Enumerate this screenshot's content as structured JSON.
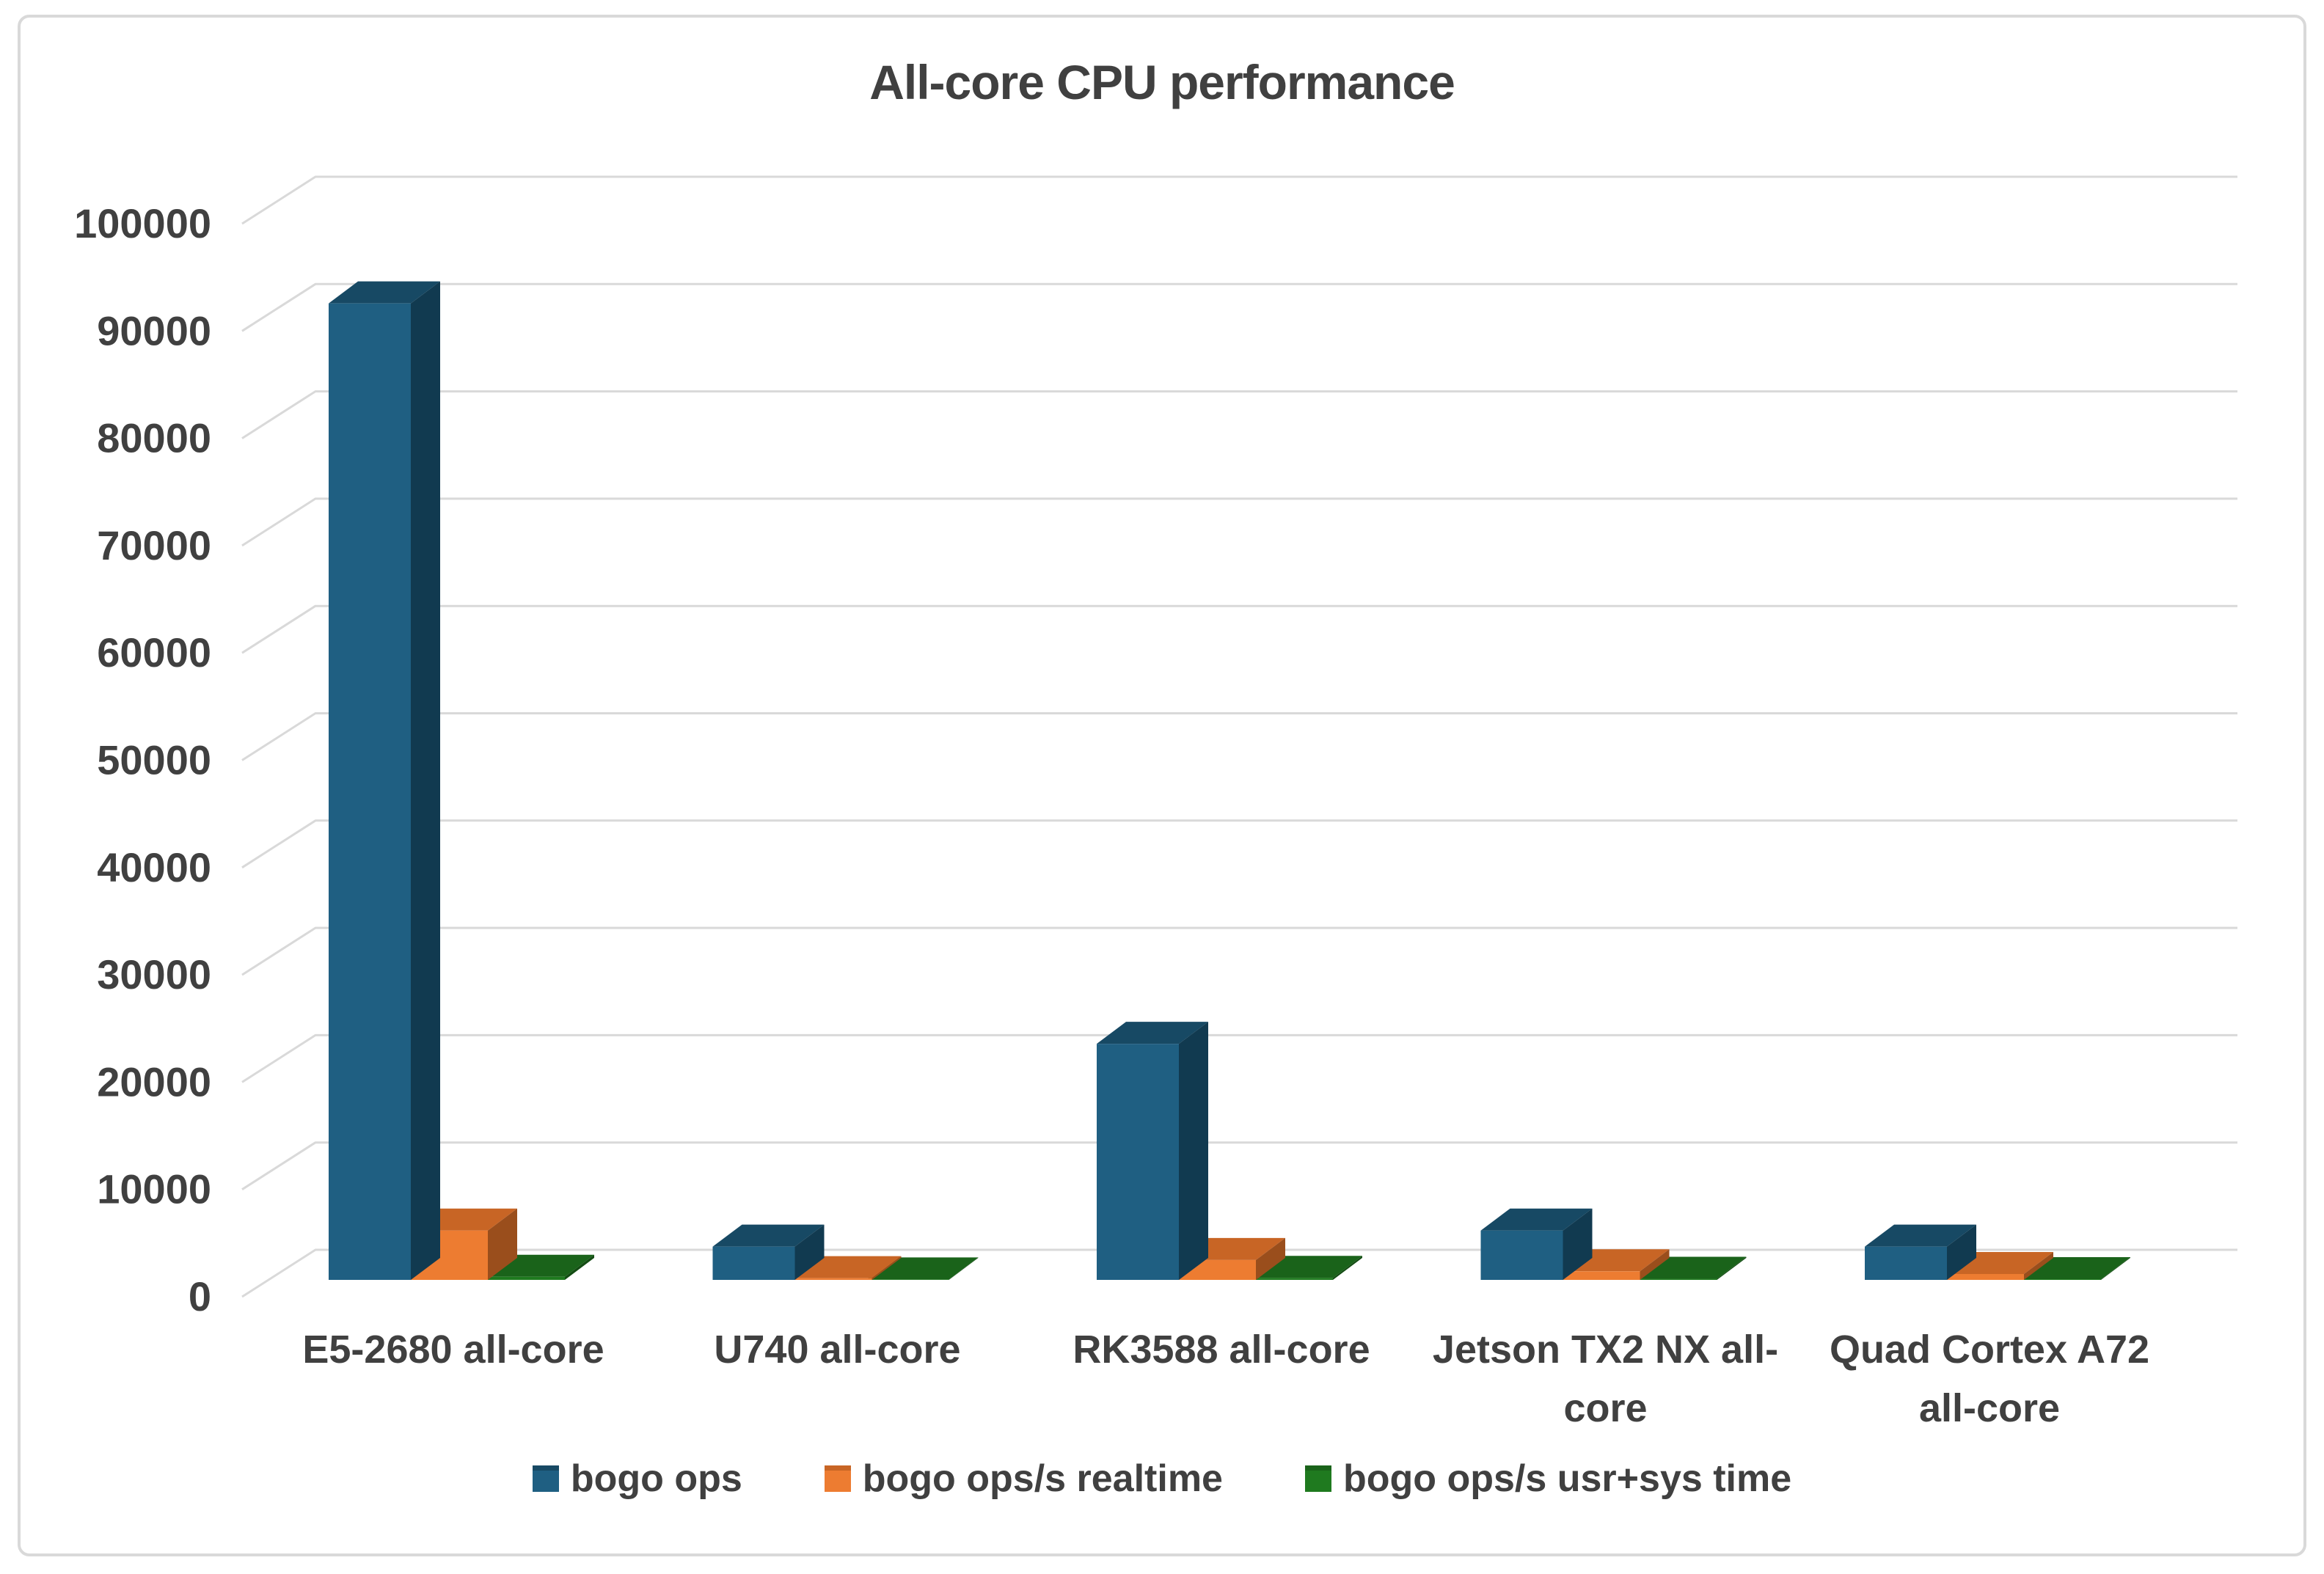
{
  "chart_data": {
    "type": "bar",
    "variant": "3d-clustered-column",
    "title": "All-core CPU performance",
    "xlabel": "",
    "ylabel": "",
    "ylim": [
      0,
      100000
    ],
    "ytick_step": 10000,
    "yticks": [
      "0",
      "10000",
      "20000",
      "30000",
      "40000",
      "50000",
      "60000",
      "70000",
      "80000",
      "90000",
      "100000"
    ],
    "grid": true,
    "legend_position": "bottom",
    "categories": [
      "E5-2680 all-core",
      "U740 all-core",
      "RK3588 all-core",
      "Jetson TX2 NX all-core",
      "Quad Cortex A72 all-core"
    ],
    "category_label_lines": [
      [
        "E5-2680 all-core"
      ],
      [
        "U740 all-core"
      ],
      [
        "RK3588 all-core"
      ],
      [
        "Jetson TX2 NX all-",
        "core"
      ],
      [
        "Quad Cortex A72",
        "all-core"
      ]
    ],
    "series": [
      {
        "name": "bogo ops",
        "color": "#1F5F82",
        "color_top": "#174964",
        "color_side": "#113A50",
        "values": [
          91000,
          3100,
          22000,
          4600,
          3100
        ]
      },
      {
        "name": "bogo ops/s realtime",
        "color": "#ED7C31",
        "color_top": "#C86525",
        "color_side": "#9A4E1C",
        "values": [
          4600,
          160,
          1850,
          800,
          550
        ]
      },
      {
        "name": "bogo ops/s usr+sys time",
        "color": "#1F7A1F",
        "color_top": "#1A631A",
        "color_side": "#134C13",
        "values": [
          290,
          40,
          190,
          100,
          70
        ]
      }
    ],
    "colors": {
      "text": "#404040",
      "gridline": "#D9D9D9",
      "frame_border": "#D9D9D9",
      "background": "#FFFFFF"
    }
  }
}
